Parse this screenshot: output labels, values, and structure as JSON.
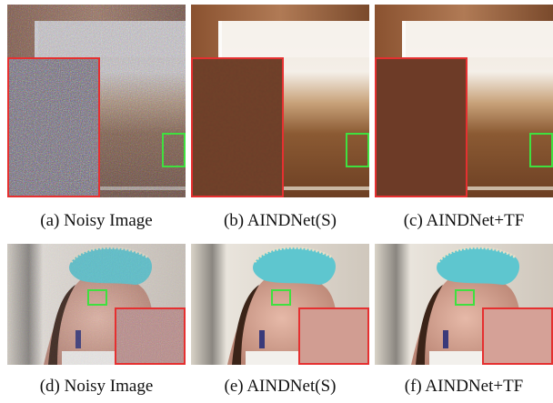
{
  "figure": {
    "panels": [
      {
        "id": "a",
        "caption": "(a) Noisy Image"
      },
      {
        "id": "b",
        "caption": "(b) AINDNet(S)"
      },
      {
        "id": "c",
        "caption": "(c) AINDNet+TF"
      },
      {
        "id": "d",
        "caption": "(d) Noisy Image"
      },
      {
        "id": "e",
        "caption": "(e) AINDNet(S)"
      },
      {
        "id": "f",
        "caption": "(f) AINDNet+TF"
      }
    ],
    "colors": {
      "zoom_box_border": "#e53030",
      "roi_box_border": "#3fe03f"
    }
  }
}
